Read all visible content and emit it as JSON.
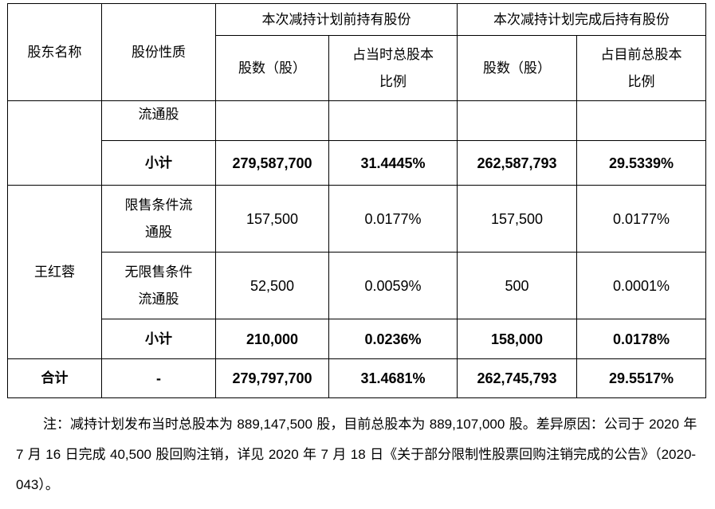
{
  "header": {
    "col_shareholder": "股东名称",
    "col_nature": "股份性质",
    "group_before": "本次减持计划前持有股份",
    "group_after": "本次减持计划完成后持有股份",
    "sub_shares_before": "股数（股）",
    "sub_ratio_before_1": "占当时总股本",
    "sub_ratio_before_2": "比例",
    "sub_shares_after": "股数（股）",
    "sub_ratio_after_1": "占目前总股本",
    "sub_ratio_after_2": "比例"
  },
  "rows": {
    "r1": {
      "nature": "流通股",
      "shares_before": "",
      "ratio_before": "",
      "shares_after": "",
      "ratio_after": ""
    },
    "r2": {
      "nature": "小计",
      "shares_before": "279,587,700",
      "ratio_before": "31.4445%",
      "shares_after": "262,587,793",
      "ratio_after": "29.5339%"
    },
    "wang": {
      "name": "王红蓉",
      "restricted": {
        "nature_1": "限售条件流",
        "nature_2": "通股",
        "shares_before": "157,500",
        "ratio_before": "0.0177%",
        "shares_after": "157,500",
        "ratio_after": "0.0177%"
      },
      "unrestricted": {
        "nature_1": "无限售条件",
        "nature_2": "流通股",
        "shares_before": "52,500",
        "ratio_before": "0.0059%",
        "shares_after": "500",
        "ratio_after": "0.0001%"
      },
      "subtotal": {
        "nature": "小计",
        "shares_before": "210,000",
        "ratio_before": "0.0236%",
        "shares_after": "158,000",
        "ratio_after": "0.0178%"
      }
    },
    "total": {
      "label": "合计",
      "nature": "-",
      "shares_before": "279,797,700",
      "ratio_before": "31.4681%",
      "shares_after": "262,745,793",
      "ratio_after": "29.5517%"
    }
  },
  "note": {
    "p1": "注：减持计划发布当时总股本为 ",
    "n1": "889,147,500",
    "p2": " 股，目前总股本为 ",
    "n2": "889,107,000",
    "p3": " 股。差异原因：公司于 ",
    "n3": "2020",
    "p4": " 年 ",
    "n4": "7",
    "p5": " 月 ",
    "n5": "16",
    "p6": " 日完成 ",
    "n6": "40,500",
    "p7": " 股回购注销，详见 ",
    "n7": "2020",
    "p8": " 年 ",
    "n8": "7",
    "p9": " 月 ",
    "n9": "18",
    "p10": " 日《关于部分限制性股票回购注销完成的公告》（",
    "n10": "2020-043",
    "p11": "）。"
  }
}
